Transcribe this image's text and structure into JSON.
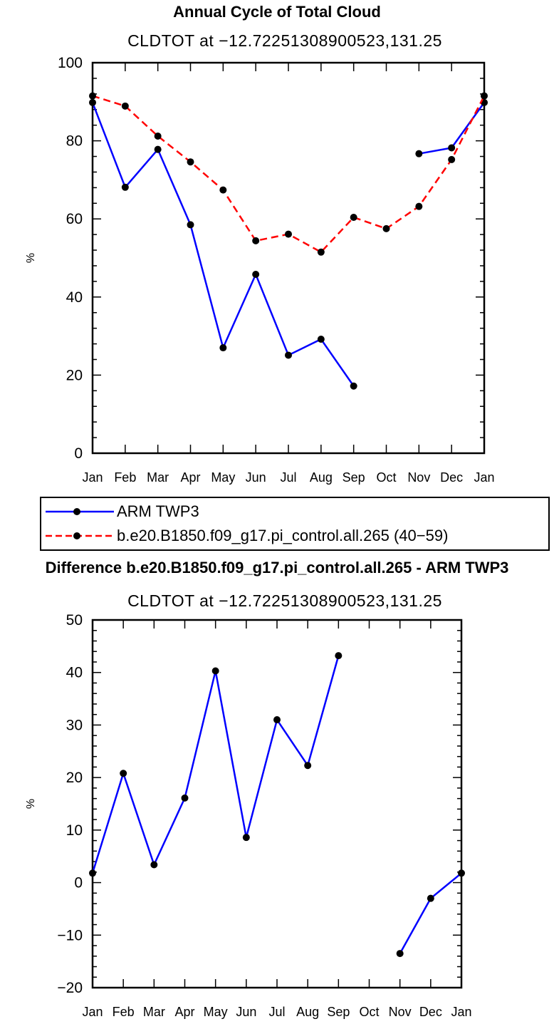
{
  "chart_data": [
    {
      "type": "line",
      "title": "Annual Cycle of Total Cloud",
      "subtitle": "CLDTOT at −12.72251308900523,131.25",
      "xlabel": "",
      "ylabel": "%",
      "categories": [
        "Jan",
        "Feb",
        "Mar",
        "Apr",
        "May",
        "Jun",
        "Jul",
        "Aug",
        "Sep",
        "Oct",
        "Nov",
        "Dec",
        "Jan"
      ],
      "ylim": [
        0,
        100
      ],
      "yticks": [
        0,
        20,
        40,
        60,
        80,
        100
      ],
      "series": [
        {
          "name": "ARM TWP3",
          "color": "#0000ff",
          "dash": "solid",
          "values": [
            89.8,
            68.1,
            77.8,
            58.5,
            27.0,
            45.8,
            25.1,
            29.2,
            17.2,
            null,
            76.7,
            78.2,
            89.8
          ]
        },
        {
          "name": "b.e20.B1850.f09_g17.pi_control.all.265 (40−59)",
          "color": "#ff0000",
          "dash": "dashed",
          "values": [
            91.5,
            88.9,
            81.2,
            74.6,
            67.4,
            54.4,
            56.1,
            51.5,
            60.4,
            57.5,
            63.2,
            75.2,
            91.5
          ]
        }
      ]
    },
    {
      "type": "line",
      "title": "Difference b.e20.B1850.f09_g17.pi_control.all.265 - ARM TWP3",
      "subtitle": "CLDTOT at −12.72251308900523,131.25",
      "xlabel": "",
      "ylabel": "%",
      "categories": [
        "Jan",
        "Feb",
        "Mar",
        "Apr",
        "May",
        "Jun",
        "Jul",
        "Aug",
        "Sep",
        "Oct",
        "Nov",
        "Dec",
        "Jan"
      ],
      "ylim": [
        -20,
        50
      ],
      "yticks": [
        -20,
        -10,
        0,
        10,
        20,
        30,
        40,
        50
      ],
      "series": [
        {
          "color": "#0000ff",
          "dash": "solid",
          "values": [
            1.8,
            20.8,
            3.4,
            16.1,
            40.3,
            8.6,
            31.0,
            22.3,
            43.2,
            null,
            -13.5,
            -3.0,
            1.8
          ]
        }
      ]
    }
  ]
}
